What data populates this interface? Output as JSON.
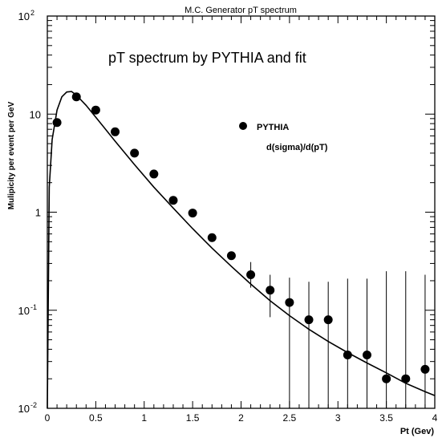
{
  "chart_data": {
    "type": "scatter",
    "title": "M.C. Generator pT spectrum",
    "inner_title": "pT spectrum by PYTHIA and fit",
    "xlabel": "Pt (Gev)",
    "ylabel": "Mulipicity per event per GeV",
    "xlim": [
      0,
      4
    ],
    "ylim": [
      0.01,
      100
    ],
    "yscale": "log",
    "grid": false,
    "legend": {
      "position": "top-right",
      "entries": [
        {
          "label": "PYTHIA",
          "marker": "filled-circle"
        },
        {
          "label": "d(sigma)/d(pT)",
          "marker": "none"
        }
      ]
    },
    "x_ticks": [
      {
        "value": 0,
        "label": "0"
      },
      {
        "value": 0.5,
        "label": "0.5"
      },
      {
        "value": 1,
        "label": "1"
      },
      {
        "value": 1.5,
        "label": "1.5"
      },
      {
        "value": 2,
        "label": "2"
      },
      {
        "value": 2.5,
        "label": "2.5"
      },
      {
        "value": 3,
        "label": "3"
      },
      {
        "value": 3.5,
        "label": "3.5"
      },
      {
        "value": 4,
        "label": "4"
      }
    ],
    "y_ticks": [
      {
        "value": 0.01,
        "base": "10",
        "exp": "-2"
      },
      {
        "value": 0.1,
        "base": "10",
        "exp": "-1"
      },
      {
        "value": 1,
        "base": "1",
        "exp": ""
      },
      {
        "value": 10,
        "base": "10",
        "exp": ""
      },
      {
        "value": 100,
        "base": "10",
        "exp": "2"
      }
    ],
    "series": [
      {
        "name": "PYTHIA",
        "points": [
          {
            "x": 0.1,
            "y": 8.2
          },
          {
            "x": 0.3,
            "y": 15.0
          },
          {
            "x": 0.5,
            "y": 11.0
          },
          {
            "x": 0.7,
            "y": 6.6
          },
          {
            "x": 0.9,
            "y": 4.0
          },
          {
            "x": 1.1,
            "y": 2.45
          },
          {
            "x": 1.3,
            "y": 1.32
          },
          {
            "x": 1.5,
            "y": 0.98
          },
          {
            "x": 1.7,
            "y": 0.55
          },
          {
            "x": 1.9,
            "y": 0.36
          },
          {
            "x": 2.1,
            "y": 0.23,
            "err": [
              0.17,
              0.31
            ]
          },
          {
            "x": 2.3,
            "y": 0.16,
            "err": [
              0.085,
              0.23
            ]
          },
          {
            "x": 2.5,
            "y": 0.12,
            "err": [
              0.01,
              0.215
            ]
          },
          {
            "x": 2.7,
            "y": 0.08,
            "err": [
              0.01,
              0.195
            ]
          },
          {
            "x": 2.9,
            "y": 0.08,
            "err": [
              0.01,
              0.195
            ]
          },
          {
            "x": 3.1,
            "y": 0.035,
            "err": [
              0.01,
              0.21
            ]
          },
          {
            "x": 3.3,
            "y": 0.035,
            "err": [
              0.01,
              0.21
            ]
          },
          {
            "x": 3.5,
            "y": 0.02,
            "err": [
              0.01,
              0.25
            ]
          },
          {
            "x": 3.7,
            "y": 0.02,
            "err": [
              0.01,
              0.25
            ]
          },
          {
            "x": 3.9,
            "y": 0.025,
            "err": [
              0.01,
              0.23
            ]
          }
        ]
      }
    ],
    "fit_curve": {
      "name": "d(sigma)/d(pT)",
      "points": [
        {
          "x": 0.0,
          "y": 0.01
        },
        {
          "x": 0.02,
          "y": 1.8
        },
        {
          "x": 0.05,
          "y": 5.5
        },
        {
          "x": 0.1,
          "y": 11.0
        },
        {
          "x": 0.15,
          "y": 15.0
        },
        {
          "x": 0.2,
          "y": 16.8
        },
        {
          "x": 0.25,
          "y": 17.0
        },
        {
          "x": 0.3,
          "y": 15.6
        },
        {
          "x": 0.4,
          "y": 12.3
        },
        {
          "x": 0.5,
          "y": 9.3
        },
        {
          "x": 0.7,
          "y": 5.3
        },
        {
          "x": 0.9,
          "y": 3.05
        },
        {
          "x": 1.1,
          "y": 1.8
        },
        {
          "x": 1.3,
          "y": 1.1
        },
        {
          "x": 1.5,
          "y": 0.68
        },
        {
          "x": 1.7,
          "y": 0.43
        },
        {
          "x": 1.9,
          "y": 0.28
        },
        {
          "x": 2.1,
          "y": 0.185
        },
        {
          "x": 2.3,
          "y": 0.125
        },
        {
          "x": 2.5,
          "y": 0.088
        },
        {
          "x": 2.7,
          "y": 0.064
        },
        {
          "x": 2.9,
          "y": 0.048
        },
        {
          "x": 3.1,
          "y": 0.037
        },
        {
          "x": 3.3,
          "y": 0.029
        },
        {
          "x": 3.5,
          "y": 0.023
        },
        {
          "x": 3.7,
          "y": 0.018
        },
        {
          "x": 3.9,
          "y": 0.0148
        },
        {
          "x": 4.0,
          "y": 0.0135
        }
      ]
    }
  }
}
